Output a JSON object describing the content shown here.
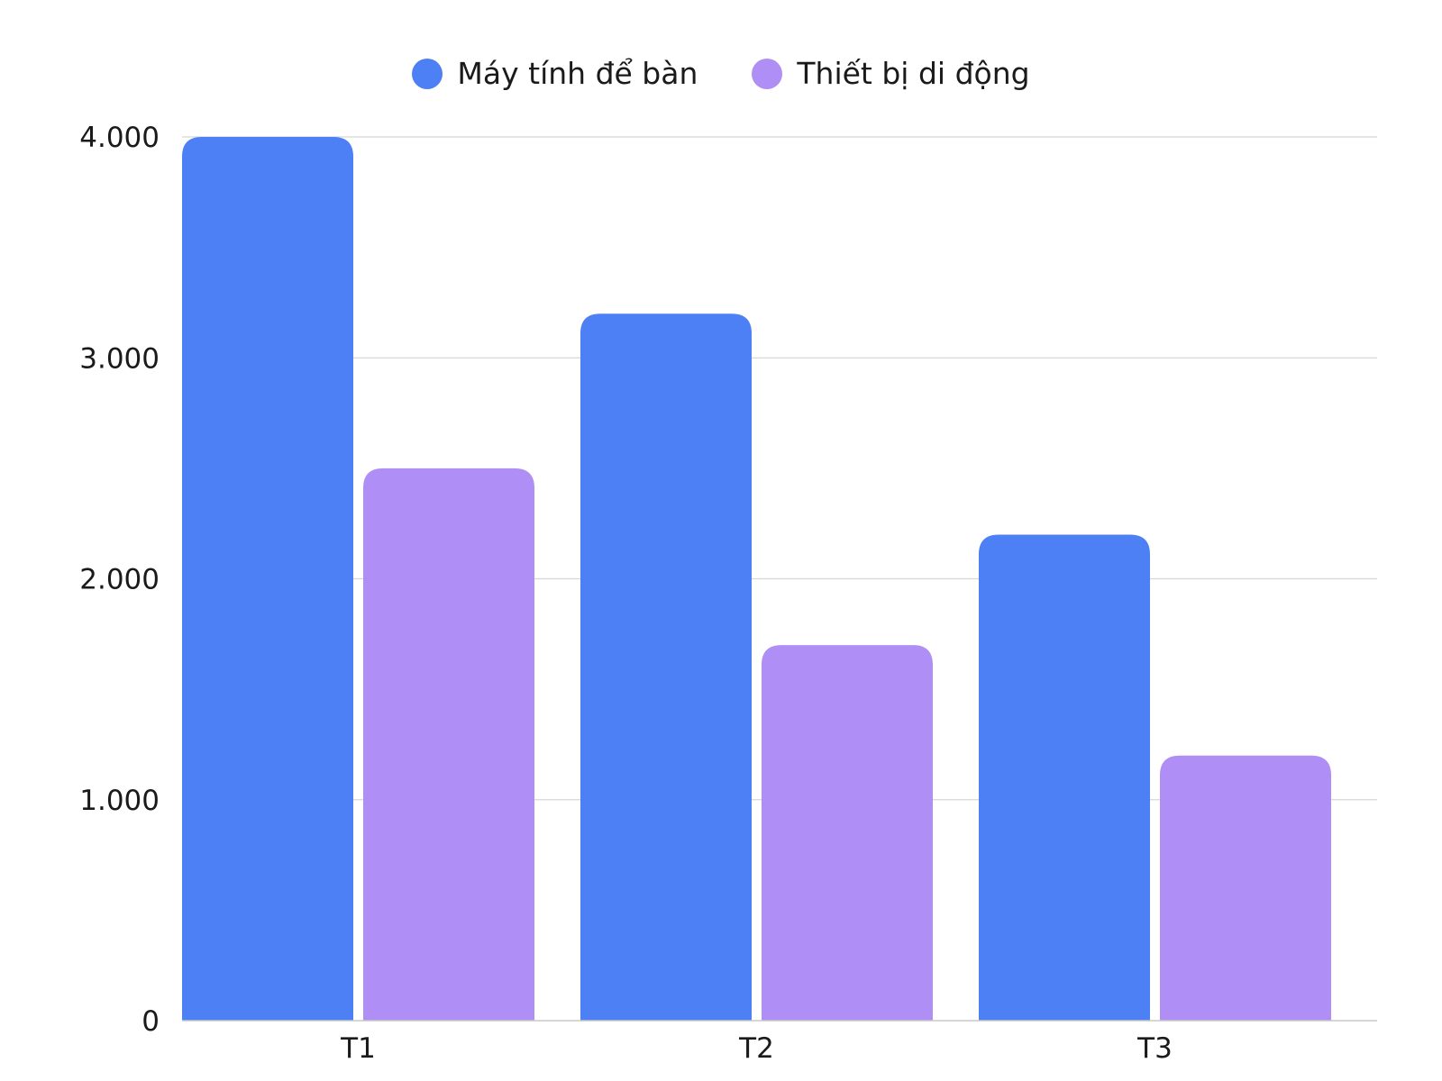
{
  "chart_data": {
    "type": "bar",
    "title": "",
    "xlabel": "",
    "ylabel": "",
    "categories": [
      "T1",
      "T2",
      "T3"
    ],
    "series": [
      {
        "name": "Máy tính để bàn",
        "color": "#4d7ff5",
        "values": [
          4000,
          3200,
          2200
        ]
      },
      {
        "name": "Thiết bị di động",
        "color": "#af8ef5",
        "values": [
          2500,
          1700,
          1200
        ]
      }
    ],
    "ylim": [
      0,
      4000
    ],
    "yticks": [
      0,
      1000,
      2000,
      3000,
      4000
    ],
    "ytick_labels": [
      "0",
      "1.000",
      "2.000",
      "3.000",
      "4.000"
    ],
    "grid": true,
    "legend_position": "top-center"
  }
}
